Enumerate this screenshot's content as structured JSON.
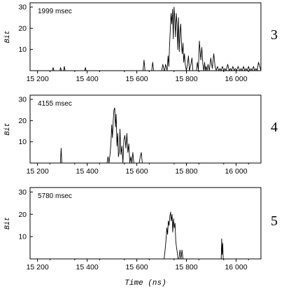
{
  "xlabel": "Time (ns)",
  "chart_data": [
    {
      "type": "line",
      "panel_number": "3",
      "annotation": "1999 msec",
      "ylabel": "Bit",
      "xlim": [
        15170,
        16100
      ],
      "ylim": [
        0,
        32
      ],
      "x_ticks": [
        15200,
        15400,
        15600,
        15800,
        16000
      ],
      "x_tick_labels": [
        "15 200",
        "15 400",
        "15 600",
        "15 800",
        "16 000"
      ],
      "y_ticks": [
        10,
        20,
        30
      ],
      "y_tick_labels": [
        "10",
        "20",
        "30"
      ],
      "series": [
        {
          "x": [
            15170,
            15260,
            15263,
            15266,
            15290,
            15293,
            15296,
            15305,
            15308,
            15311,
            15390,
            15393,
            15396,
            15625,
            15629,
            15633,
            15660,
            15664,
            15668,
            15700,
            15705,
            15710,
            15712,
            15716,
            15722,
            15726,
            15729,
            15732,
            15735,
            15738,
            15741,
            15744,
            15747,
            15750,
            15753,
            15756,
            15759,
            15762,
            15765,
            15768,
            15771,
            15774,
            15777,
            15780,
            15783,
            15786,
            15789,
            15792,
            15795,
            15800,
            15804,
            15808,
            15812,
            15818,
            15822,
            15826,
            15840,
            15844,
            15848,
            15852,
            15858,
            15862,
            15866,
            15870,
            15873,
            15876,
            15879,
            15883,
            15887,
            15892,
            15898,
            15904,
            15910,
            15915,
            15920,
            15925,
            15930,
            15935,
            15940,
            15945,
            15950,
            15955,
            15960,
            15966,
            15972,
            15977,
            15982,
            15987,
            15992,
            15997,
            16002,
            16008,
            16014,
            16020,
            16025,
            16030,
            16035,
            16040,
            16045,
            16050,
            16055,
            16060,
            16065,
            16070,
            16075,
            16080,
            16085,
            16090,
            16100
          ],
          "y": [
            0,
            0,
            1.5,
            0,
            0,
            1.5,
            0,
            0,
            2,
            0,
            0,
            1.5,
            0,
            0,
            5,
            0,
            0,
            4,
            0,
            0,
            3,
            0,
            0,
            3,
            0,
            7,
            2,
            12,
            20,
            27,
            22,
            29,
            15,
            30,
            24,
            16,
            27,
            22,
            10,
            25,
            9,
            18,
            22,
            12,
            8,
            13,
            4,
            8,
            3,
            0,
            3,
            7,
            0,
            3,
            6,
            0,
            0,
            4,
            0,
            14,
            5,
            11,
            3,
            0,
            4,
            0,
            2,
            0,
            3,
            0,
            6,
            1,
            8,
            2,
            0,
            2,
            0,
            1,
            0,
            2,
            0,
            1,
            0,
            3,
            0,
            1,
            0,
            2,
            0,
            1,
            0,
            2,
            0,
            1,
            0,
            2,
            0,
            1,
            0,
            2,
            0,
            1,
            0,
            2,
            0,
            1,
            0,
            4,
            0
          ]
        }
      ]
    },
    {
      "type": "line",
      "panel_number": "4",
      "annotation": "4155 msec",
      "ylabel": "Bit",
      "xlim": [
        15170,
        16100
      ],
      "ylim": [
        0,
        32
      ],
      "x_ticks": [
        15200,
        15400,
        15600,
        15800,
        16000
      ],
      "x_tick_labels": [
        "15 200",
        "15 400",
        "15 600",
        "15 800",
        "16 000"
      ],
      "y_ticks": [
        10,
        20,
        30
      ],
      "y_tick_labels": [
        "10",
        "20",
        "30"
      ],
      "series": [
        {
          "x": [
            15170,
            15292,
            15295,
            15298,
            15480,
            15484,
            15488,
            15493,
            15496,
            15499,
            15502,
            15505,
            15508,
            15511,
            15514,
            15517,
            15520,
            15523,
            15526,
            15529,
            15532,
            15536,
            15540,
            15544,
            15548,
            15552,
            15556,
            15560,
            15564,
            15568,
            15572,
            15576,
            15580,
            15584,
            15588,
            15610,
            15614,
            15618,
            15622,
            16100
          ],
          "y": [
            0,
            0,
            7,
            0,
            0,
            3,
            0,
            5,
            10,
            18,
            12,
            20,
            25,
            26,
            17,
            23,
            8,
            14,
            3,
            5,
            16,
            4,
            8,
            0,
            11,
            13,
            7,
            14,
            5,
            9,
            0,
            3,
            0,
            5,
            0,
            0,
            3,
            5,
            0,
            0
          ]
        }
      ]
    },
    {
      "type": "line",
      "panel_number": "5",
      "annotation": "5780 msec",
      "ylabel": "Bit",
      "xlim": [
        15170,
        16100
      ],
      "ylim": [
        0,
        32
      ],
      "x_ticks": [
        15200,
        15400,
        15600,
        15800,
        16000
      ],
      "x_tick_labels": [
        "15 200",
        "15 400",
        "15 600",
        "15 800",
        "16 000"
      ],
      "y_ticks": [
        10,
        20,
        30
      ],
      "y_tick_labels": [
        "10",
        "20",
        "30"
      ],
      "series": [
        {
          "x": [
            15170,
            15710,
            15714,
            15718,
            15721,
            15724,
            15727,
            15730,
            15733,
            15736,
            15739,
            15742,
            15745,
            15748,
            15751,
            15754,
            15757,
            15760,
            15763,
            15766,
            15770,
            15774,
            15778,
            15782,
            15786,
            15940,
            15942,
            15944,
            15946,
            15948,
            16100
          ],
          "y": [
            0,
            0,
            4,
            9,
            14,
            11,
            17,
            15,
            19,
            21,
            17,
            20,
            12,
            18,
            14,
            16,
            8,
            5,
            3,
            0,
            0,
            4,
            0,
            4,
            0,
            0,
            9,
            2,
            7,
            0,
            0
          ]
        }
      ]
    }
  ]
}
